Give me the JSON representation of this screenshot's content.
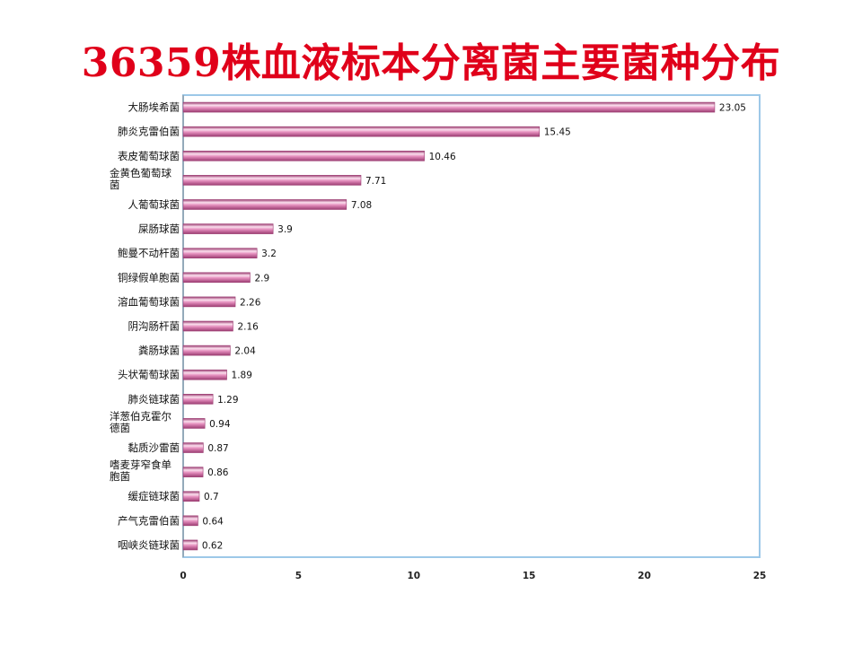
{
  "slide": {
    "title": "36359株血液标本分离菌主要菌种分布",
    "title_color": "#e0001a"
  },
  "chart_data": {
    "type": "bar",
    "orientation": "horizontal",
    "title": "36359株血液标本分离菌主要菌种分布",
    "categories": [
      "大肠埃希菌",
      "肺炎克雷伯菌",
      "表皮葡萄球菌",
      "金黄色葡萄球菌",
      "人葡萄球菌",
      "屎肠球菌",
      "鲍曼不动杆菌",
      "铜绿假单胞菌",
      "溶血葡萄球菌",
      "阴沟肠杆菌",
      "粪肠球菌",
      "头状葡萄球菌",
      "肺炎链球菌",
      "洋葱伯克霍尔德菌",
      "黏质沙雷菌",
      "嗜麦芽窄食单胞菌",
      "缓症链球菌",
      "产气克雷伯菌",
      "咽峡炎链球菌"
    ],
    "values": [
      23.05,
      15.45,
      10.46,
      7.71,
      7.08,
      3.9,
      3.2,
      2.9,
      2.26,
      2.16,
      2.04,
      1.89,
      1.29,
      0.94,
      0.87,
      0.86,
      0.7,
      0.64,
      0.62
    ],
    "xlim": [
      0,
      25
    ],
    "xticks": [
      0,
      5,
      10,
      15,
      20,
      25
    ],
    "xlabel": "",
    "ylabel": "",
    "grid": false,
    "legend": "none",
    "colors": {
      "bar_dark": "#9c3d72",
      "bar_mid": "#e58fbe",
      "bar_light": "#fbe0ee",
      "plot_border": "#9dc8e8",
      "axis": "#8c8c8c"
    }
  }
}
